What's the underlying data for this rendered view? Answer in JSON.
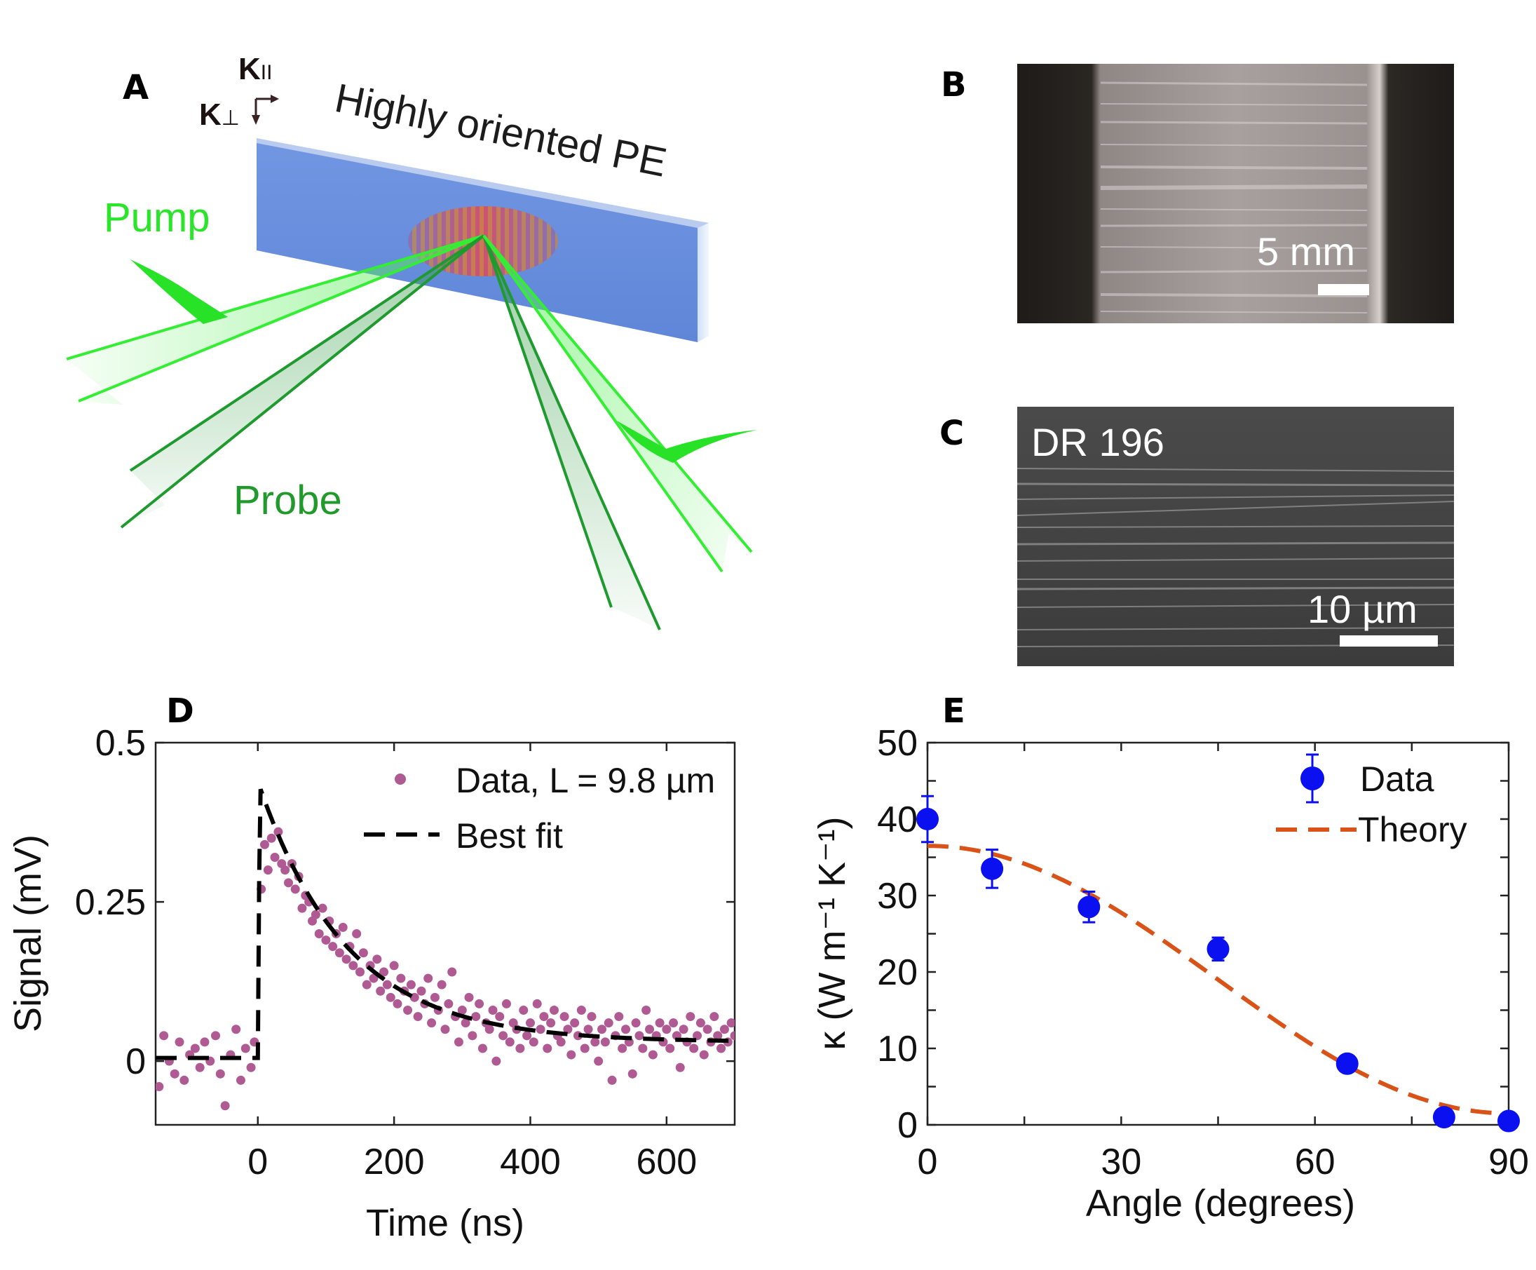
{
  "panels": {
    "a": "A",
    "b": "B",
    "c": "C",
    "d": "D",
    "e": "E"
  },
  "panel_a": {
    "k_parallel": "K",
    "k_parallel_sub": "II",
    "k_perp": "K",
    "k_perp_sub": "⊥",
    "sample_label": "Highly oriented PE",
    "pump_label": "Pump",
    "probe_label": "Probe",
    "colors": {
      "sample": "#6e8fdd",
      "pump": "#33ee33",
      "probe": "#1e9a2e"
    }
  },
  "panel_b": {
    "scale_label": "5 mm"
  },
  "panel_c": {
    "overlay_label": "DR 196",
    "scale_label": "10 µm"
  },
  "chart_data": [
    {
      "id": "D",
      "type": "scatter",
      "xlabel": "Time (ns)",
      "ylabel": "Signal (mV)",
      "xlim": [
        -150,
        700
      ],
      "ylim": [
        -0.1,
        0.5
      ],
      "xticks": [
        0,
        200,
        400,
        600
      ],
      "yticks": [
        0,
        0.25,
        0.5
      ],
      "ytick_labels": [
        "0",
        "0.25",
        "0.5"
      ],
      "legend": {
        "position": "top-right",
        "data_label": "Data, L = 9.8 µm",
        "fit_label": "Best fit"
      },
      "fit": {
        "baseline": 0.005,
        "peak": 0.43,
        "rise_time": 3,
        "amplitude": 0.31,
        "tau": 130,
        "offset": 0.03
      },
      "data": {
        "x": [
          -145,
          -138,
          -130,
          -122,
          -115,
          -108,
          -100,
          -92,
          -85,
          -78,
          -70,
          -62,
          -55,
          -48,
          -40,
          -32,
          -25,
          -18,
          -10,
          -5,
          5,
          10,
          15,
          20,
          25,
          30,
          35,
          40,
          45,
          50,
          55,
          60,
          65,
          70,
          75,
          80,
          85,
          90,
          95,
          100,
          105,
          110,
          115,
          120,
          125,
          130,
          135,
          140,
          145,
          150,
          155,
          160,
          165,
          170,
          175,
          180,
          185,
          190,
          195,
          200,
          205,
          210,
          215,
          220,
          225,
          230,
          235,
          240,
          245,
          250,
          255,
          260,
          265,
          270,
          275,
          280,
          285,
          290,
          295,
          300,
          305,
          310,
          315,
          320,
          325,
          330,
          335,
          340,
          345,
          350,
          355,
          360,
          365,
          370,
          375,
          380,
          385,
          390,
          395,
          400,
          405,
          410,
          415,
          420,
          425,
          430,
          435,
          440,
          445,
          450,
          455,
          460,
          465,
          470,
          475,
          480,
          485,
          490,
          495,
          500,
          505,
          510,
          515,
          520,
          525,
          530,
          535,
          540,
          545,
          550,
          555,
          560,
          565,
          570,
          575,
          580,
          585,
          590,
          595,
          600,
          605,
          610,
          615,
          620,
          625,
          630,
          635,
          640,
          645,
          650,
          655,
          660,
          665,
          670,
          675,
          680,
          685,
          690,
          695,
          700
        ],
        "y": [
          -0.04,
          0.04,
          0.0,
          -0.02,
          0.03,
          -0.03,
          0.01,
          0.02,
          -0.01,
          0.03,
          0.0,
          0.04,
          -0.02,
          -0.07,
          0.01,
          0.05,
          -0.03,
          0.02,
          -0.01,
          0.03,
          0.27,
          0.34,
          0.3,
          0.35,
          0.32,
          0.36,
          0.31,
          0.3,
          0.28,
          0.31,
          0.27,
          0.29,
          0.24,
          0.26,
          0.25,
          0.22,
          0.23,
          0.2,
          0.24,
          0.19,
          0.22,
          0.18,
          0.2,
          0.17,
          0.21,
          0.16,
          0.18,
          0.15,
          0.2,
          0.14,
          0.17,
          0.12,
          0.15,
          0.13,
          0.16,
          0.11,
          0.14,
          0.12,
          0.1,
          0.15,
          0.09,
          0.13,
          0.11,
          0.08,
          0.12,
          0.1,
          0.07,
          0.11,
          0.09,
          0.13,
          0.06,
          0.1,
          0.08,
          0.12,
          0.05,
          0.09,
          0.14,
          0.07,
          0.03,
          0.08,
          0.06,
          0.1,
          0.04,
          0.07,
          0.09,
          0.02,
          0.06,
          0.05,
          0.08,
          0.0,
          0.07,
          0.04,
          0.09,
          0.03,
          0.06,
          0.05,
          0.02,
          0.08,
          0.04,
          0.06,
          0.03,
          0.09,
          0.05,
          0.07,
          0.02,
          0.06,
          0.08,
          0.04,
          0.03,
          0.07,
          0.05,
          0.01,
          0.06,
          0.04,
          0.08,
          0.02,
          0.05,
          0.07,
          0.03,
          0.0,
          0.05,
          0.03,
          0.06,
          -0.03,
          0.04,
          0.07,
          0.02,
          0.05,
          0.03,
          -0.02,
          0.06,
          0.04,
          0.02,
          0.08,
          0.05,
          0.01,
          0.04,
          0.06,
          0.03,
          0.05,
          0.02,
          0.06,
          0.04,
          -0.01,
          0.05,
          0.03,
          0.07,
          0.02,
          0.04,
          0.06,
          0.01,
          0.05,
          0.03,
          0.07,
          0.04,
          0.02,
          0.05,
          0.03,
          0.06,
          0.04
        ]
      },
      "colors": {
        "data": "#b05a94",
        "fit": "#000000"
      }
    },
    {
      "id": "E",
      "type": "scatter",
      "xlabel": "Angle (degrees)",
      "ylabel": "κ (W m⁻¹ K⁻¹)",
      "xlim": [
        0,
        90
      ],
      "ylim": [
        0,
        50
      ],
      "xticks": [
        0,
        30,
        60,
        90
      ],
      "yticks": [
        0,
        10,
        20,
        30,
        40,
        50
      ],
      "legend": {
        "position": "top-right",
        "data_label": "Data",
        "theory_label": "Theory"
      },
      "data": {
        "x": [
          0,
          10,
          25,
          45,
          65,
          80,
          90
        ],
        "y": [
          40,
          33.5,
          28.5,
          23,
          8,
          1,
          0.5
        ],
        "err": [
          3,
          2.5,
          2,
          1.5,
          0.8,
          0.5,
          0.5
        ]
      },
      "theory": {
        "k_parallel": 36.5,
        "k_perp": 1.5
      },
      "colors": {
        "data": "#0a10f0",
        "theory": "#d95319"
      }
    }
  ]
}
